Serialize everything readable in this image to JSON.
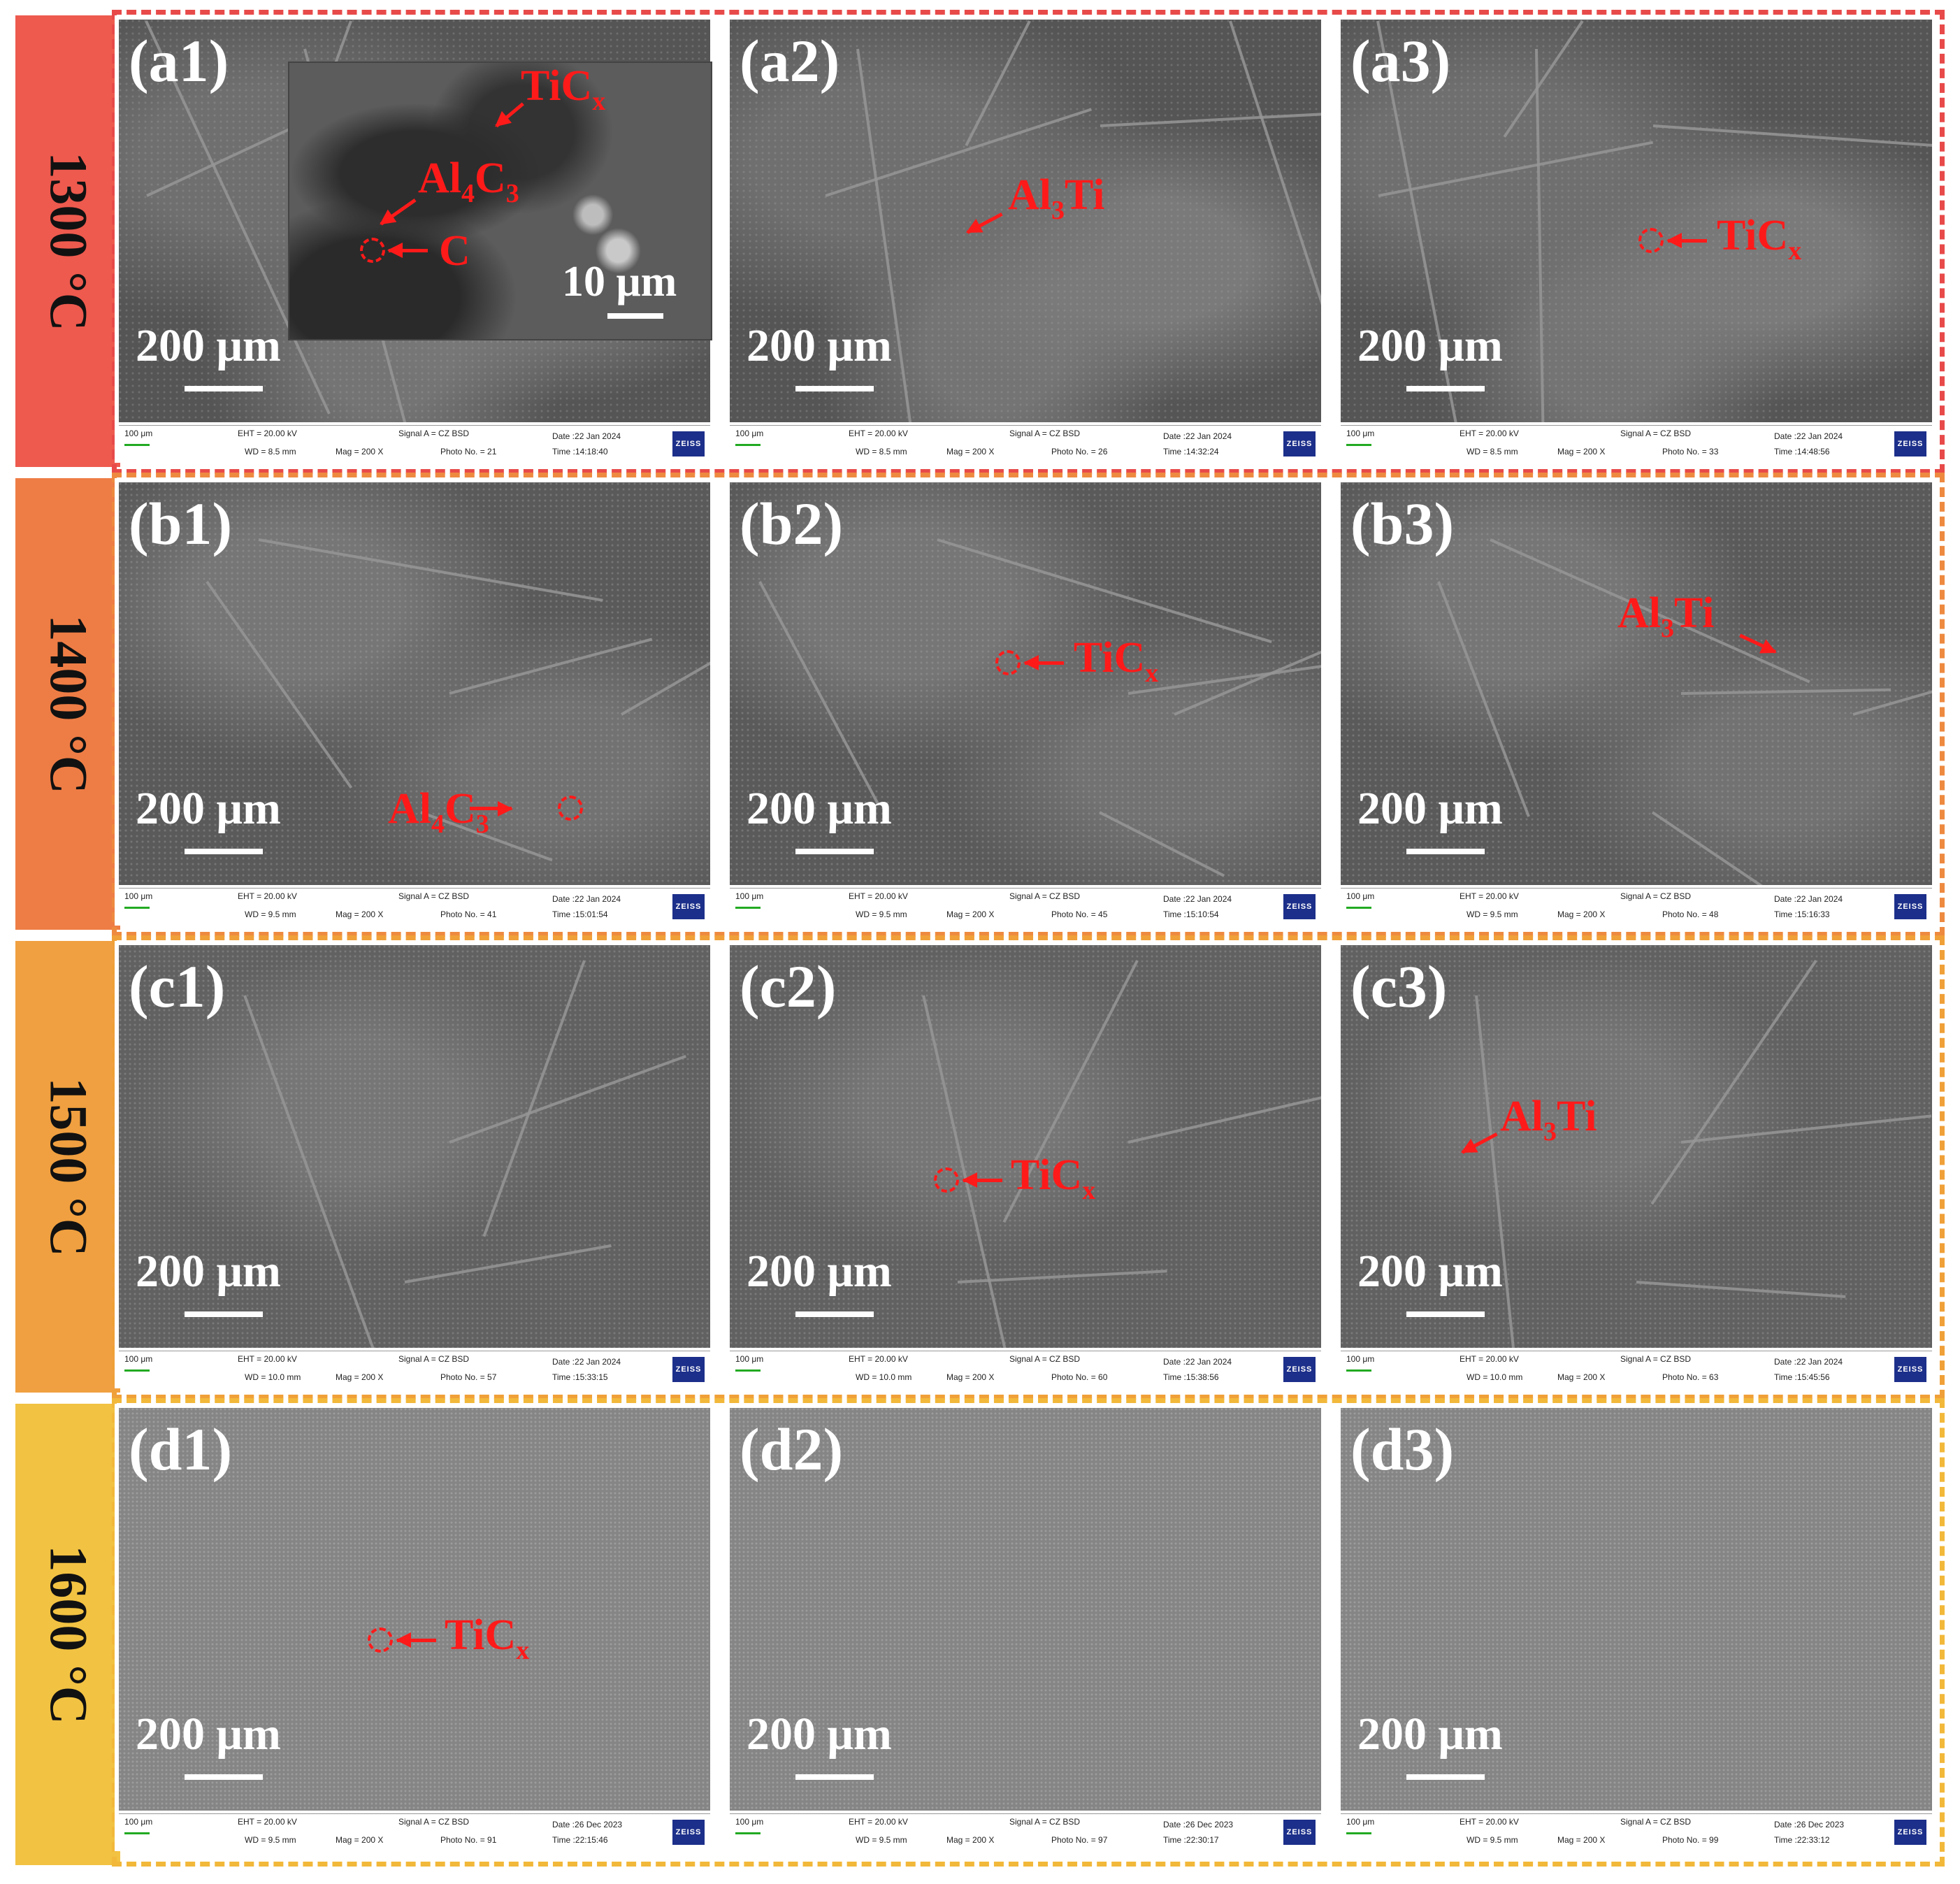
{
  "rows": [
    {
      "temperature": "1300 °C",
      "color": "#ee5a4e"
    },
    {
      "temperature": "1400 °C",
      "color": "#ee7d45"
    },
    {
      "temperature": "1500 °C",
      "color": "#f0a040"
    },
    {
      "temperature": "1600 °C",
      "color": "#f2c242"
    }
  ],
  "frame_colors": [
    "#e84a4a",
    "#ee8a40",
    "#f0a038",
    "#f2b83a"
  ],
  "scale_bar": "200 μm",
  "inset_scale_bar": "10 μm",
  "panels": [
    {
      "label": "(a1)",
      "info": {
        "scale": "100 μm",
        "eht": "EHT = 20.00 kV",
        "wd": "WD = 8.5 mm",
        "signal": "Signal A = CZ BSD",
        "mag": "Mag = 200 X",
        "photo": "Photo No. = 21",
        "date": "Date :22 Jan 2024",
        "time": "Time :14:18:40",
        "brand": "ZEISS"
      }
    },
    {
      "label": "(a2)",
      "info": {
        "scale": "100 μm",
        "eht": "EHT = 20.00 kV",
        "wd": "WD = 8.5 mm",
        "signal": "Signal A = CZ BSD",
        "mag": "Mag = 200 X",
        "photo": "Photo No. = 26",
        "date": "Date :22 Jan 2024",
        "time": "Time :14:32:24",
        "brand": "ZEISS"
      }
    },
    {
      "label": "(a3)",
      "info": {
        "scale": "100 μm",
        "eht": "EHT = 20.00 kV",
        "wd": "WD = 8.5 mm",
        "signal": "Signal A = CZ BSD",
        "mag": "Mag = 200 X",
        "photo": "Photo No. = 33",
        "date": "Date :22 Jan 2024",
        "time": "Time :14:48:56",
        "brand": "ZEISS"
      }
    },
    {
      "label": "(b1)",
      "info": {
        "scale": "100 μm",
        "eht": "EHT = 20.00 kV",
        "wd": "WD = 9.5 mm",
        "signal": "Signal A = CZ BSD",
        "mag": "Mag = 200 X",
        "photo": "Photo No. = 41",
        "date": "Date :22 Jan 2024",
        "time": "Time :15:01:54",
        "brand": "ZEISS"
      }
    },
    {
      "label": "(b2)",
      "info": {
        "scale": "100 μm",
        "eht": "EHT = 20.00 kV",
        "wd": "WD = 9.5 mm",
        "signal": "Signal A = CZ BSD",
        "mag": "Mag = 200 X",
        "photo": "Photo No. = 45",
        "date": "Date :22 Jan 2024",
        "time": "Time :15:10:54",
        "brand": "ZEISS"
      }
    },
    {
      "label": "(b3)",
      "info": {
        "scale": "100 μm",
        "eht": "EHT = 20.00 kV",
        "wd": "WD = 9.5 mm",
        "signal": "Signal A = CZ BSD",
        "mag": "Mag = 200 X",
        "photo": "Photo No. = 48",
        "date": "Date :22 Jan 2024",
        "time": "Time :15:16:33",
        "brand": "ZEISS"
      }
    },
    {
      "label": "(c1)",
      "info": {
        "scale": "100 μm",
        "eht": "EHT = 20.00 kV",
        "wd": "WD = 10.0 mm",
        "signal": "Signal A = CZ BSD",
        "mag": "Mag = 200 X",
        "photo": "Photo No. = 57",
        "date": "Date :22 Jan 2024",
        "time": "Time :15:33:15",
        "brand": "ZEISS"
      }
    },
    {
      "label": "(c2)",
      "info": {
        "scale": "100 μm",
        "eht": "EHT = 20.00 kV",
        "wd": "WD = 10.0 mm",
        "signal": "Signal A = CZ BSD",
        "mag": "Mag = 200 X",
        "photo": "Photo No. = 60",
        "date": "Date :22 Jan 2024",
        "time": "Time :15:38:56",
        "brand": "ZEISS"
      }
    },
    {
      "label": "(c3)",
      "info": {
        "scale": "100 μm",
        "eht": "EHT = 20.00 kV",
        "wd": "WD = 10.0 mm",
        "signal": "Signal A = CZ BSD",
        "mag": "Mag = 200 X",
        "photo": "Photo No. = 63",
        "date": "Date :22 Jan 2024",
        "time": "Time :15:45:56",
        "brand": "ZEISS"
      }
    },
    {
      "label": "(d1)",
      "info": {
        "scale": "100 μm",
        "eht": "EHT = 20.00 kV",
        "wd": "WD = 9.5 mm",
        "signal": "Signal A = CZ BSD",
        "mag": "Mag = 200 X",
        "photo": "Photo No. = 91",
        "date": "Date :26 Dec 2023",
        "time": "Time :22:15:46",
        "brand": "ZEISS"
      }
    },
    {
      "label": "(d2)",
      "info": {
        "scale": "100 μm",
        "eht": "EHT = 20.00 kV",
        "wd": "WD = 9.5 mm",
        "signal": "Signal A = CZ BSD",
        "mag": "Mag = 200 X",
        "photo": "Photo No. = 97",
        "date": "Date :26 Dec 2023",
        "time": "Time :22:30:17",
        "brand": "ZEISS"
      }
    },
    {
      "label": "(d3)",
      "info": {
        "scale": "100 μm",
        "eht": "EHT = 20.00 kV",
        "wd": "WD = 9.5 mm",
        "signal": "Signal A = CZ BSD",
        "mag": "Mag = 200 X",
        "photo": "Photo No. = 99",
        "date": "Date :26 Dec 2023",
        "time": "Time :22:33:12",
        "brand": "ZEISS"
      }
    }
  ],
  "annotations": {
    "a1_tic_base": "TiC",
    "a1_tic_sub": "x",
    "a1_al4c3_a": "Al",
    "a1_al4c3_s1": "4",
    "a1_al4c3_b": "C",
    "a1_al4c3_s2": "3",
    "a1_c": "C",
    "a2_al3ti_a": "Al",
    "a2_al3ti_s": "3",
    "a2_al3ti_b": "Ti",
    "a3_tic_base": "TiC",
    "a3_tic_sub": "x",
    "b1_al4c3_a": "Al",
    "b1_al4c3_s1": "4",
    "b1_al4c3_b": "C",
    "b1_al4c3_s2": "3",
    "b2_tic_base": "TiC",
    "b2_tic_sub": "x",
    "b3_al3ti_a": "Al",
    "b3_al3ti_s": "3",
    "b3_al3ti_b": "Ti",
    "c2_tic_base": "TiC",
    "c2_tic_sub": "x",
    "c3_al3ti_a": "Al",
    "c3_al3ti_s": "3",
    "c3_al3ti_b": "Ti",
    "d1_tic_base": "TiC",
    "d1_tic_sub": "x"
  }
}
